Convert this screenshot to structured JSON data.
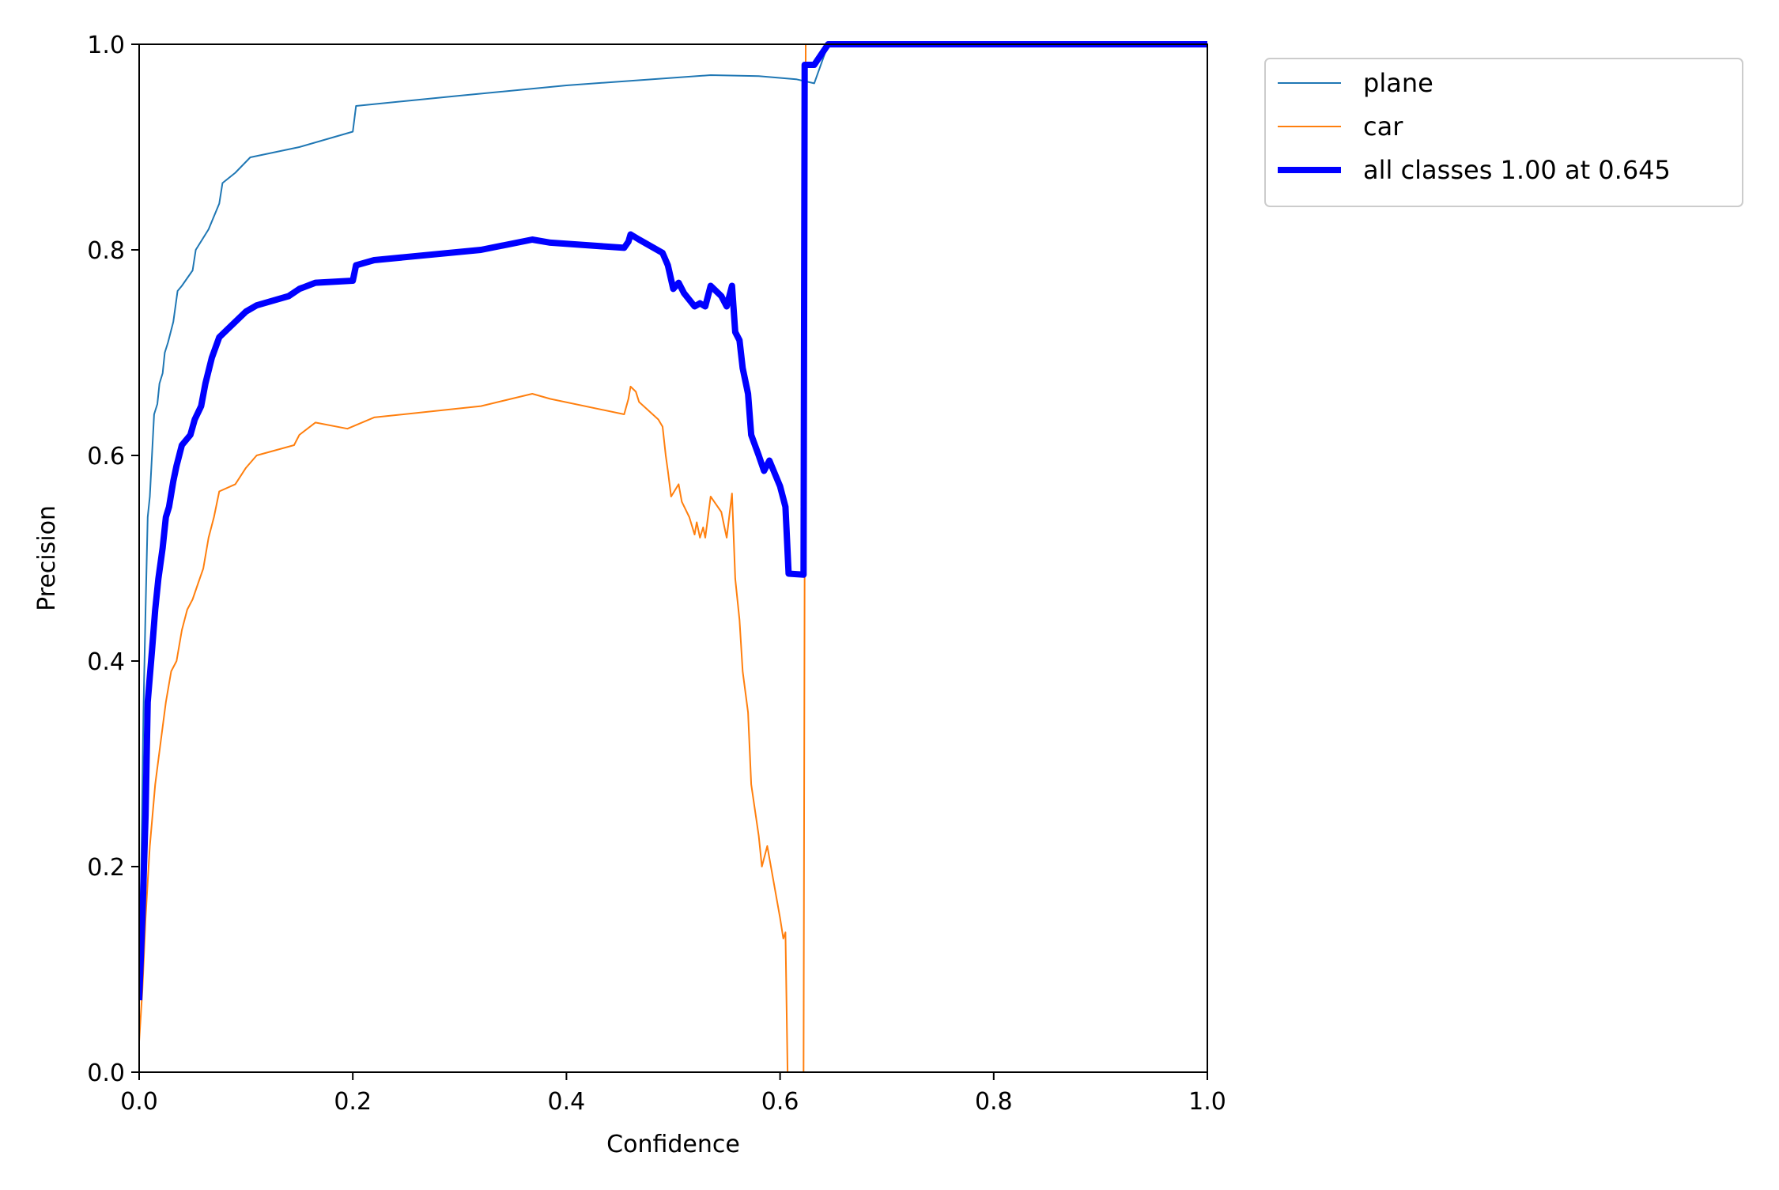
{
  "chart_data": {
    "type": "line",
    "title": "",
    "xlabel": "Confidence",
    "ylabel": "Precision",
    "xlim": [
      0,
      1
    ],
    "ylim": [
      0,
      1
    ],
    "x_ticks": [
      "0.0",
      "0.2",
      "0.4",
      "0.6",
      "0.8",
      "1.0"
    ],
    "y_ticks": [
      "0.0",
      "0.2",
      "0.4",
      "0.6",
      "0.8",
      "1.0"
    ],
    "grid": false,
    "legend_position": "outside-top-right",
    "series": [
      {
        "name": "plane",
        "color": "#1f77b4",
        "linewidth": "thin",
        "points": [
          [
            0.0,
            0.08
          ],
          [
            0.002,
            0.2
          ],
          [
            0.004,
            0.35
          ],
          [
            0.006,
            0.45
          ],
          [
            0.008,
            0.54
          ],
          [
            0.01,
            0.56
          ],
          [
            0.012,
            0.6
          ],
          [
            0.014,
            0.64
          ],
          [
            0.017,
            0.65
          ],
          [
            0.019,
            0.67
          ],
          [
            0.022,
            0.68
          ],
          [
            0.024,
            0.7
          ],
          [
            0.027,
            0.71
          ],
          [
            0.032,
            0.73
          ],
          [
            0.036,
            0.76
          ],
          [
            0.04,
            0.765
          ],
          [
            0.05,
            0.78
          ],
          [
            0.053,
            0.8
          ],
          [
            0.065,
            0.82
          ],
          [
            0.075,
            0.845
          ],
          [
            0.078,
            0.865
          ],
          [
            0.09,
            0.875
          ],
          [
            0.104,
            0.89
          ],
          [
            0.15,
            0.9
          ],
          [
            0.2,
            0.915
          ],
          [
            0.203,
            0.94
          ],
          [
            0.3,
            0.95
          ],
          [
            0.4,
            0.96
          ],
          [
            0.535,
            0.97
          ],
          [
            0.58,
            0.969
          ],
          [
            0.615,
            0.966
          ],
          [
            0.632,
            0.962
          ],
          [
            0.645,
            1.0
          ],
          [
            1.0,
            1.0
          ]
        ]
      },
      {
        "name": "car",
        "color": "#ff7f0e",
        "linewidth": "thin",
        "points": [
          [
            0.0,
            0.03
          ],
          [
            0.003,
            0.08
          ],
          [
            0.006,
            0.15
          ],
          [
            0.01,
            0.22
          ],
          [
            0.015,
            0.28
          ],
          [
            0.02,
            0.32
          ],
          [
            0.025,
            0.36
          ],
          [
            0.03,
            0.39
          ],
          [
            0.035,
            0.4
          ],
          [
            0.04,
            0.43
          ],
          [
            0.045,
            0.45
          ],
          [
            0.05,
            0.46
          ],
          [
            0.055,
            0.475
          ],
          [
            0.06,
            0.49
          ],
          [
            0.065,
            0.52
          ],
          [
            0.07,
            0.54
          ],
          [
            0.075,
            0.565
          ],
          [
            0.09,
            0.572
          ],
          [
            0.1,
            0.588
          ],
          [
            0.11,
            0.6
          ],
          [
            0.145,
            0.61
          ],
          [
            0.15,
            0.62
          ],
          [
            0.165,
            0.632
          ],
          [
            0.195,
            0.626
          ],
          [
            0.22,
            0.637
          ],
          [
            0.32,
            0.648
          ],
          [
            0.368,
            0.66
          ],
          [
            0.385,
            0.655
          ],
          [
            0.454,
            0.64
          ],
          [
            0.458,
            0.655
          ],
          [
            0.46,
            0.667
          ],
          [
            0.465,
            0.662
          ],
          [
            0.468,
            0.652
          ],
          [
            0.486,
            0.635
          ],
          [
            0.49,
            0.628
          ],
          [
            0.493,
            0.6
          ],
          [
            0.495,
            0.585
          ],
          [
            0.498,
            0.56
          ],
          [
            0.505,
            0.572
          ],
          [
            0.508,
            0.555
          ],
          [
            0.515,
            0.54
          ],
          [
            0.52,
            0.523
          ],
          [
            0.522,
            0.535
          ],
          [
            0.525,
            0.52
          ],
          [
            0.528,
            0.53
          ],
          [
            0.53,
            0.52
          ],
          [
            0.535,
            0.56
          ],
          [
            0.545,
            0.545
          ],
          [
            0.548,
            0.53
          ],
          [
            0.55,
            0.52
          ],
          [
            0.555,
            0.563
          ],
          [
            0.558,
            0.48
          ],
          [
            0.562,
            0.44
          ],
          [
            0.565,
            0.39
          ],
          [
            0.57,
            0.35
          ],
          [
            0.573,
            0.28
          ],
          [
            0.58,
            0.23
          ],
          [
            0.583,
            0.2
          ],
          [
            0.588,
            0.22
          ],
          [
            0.6,
            0.15
          ],
          [
            0.603,
            0.13
          ],
          [
            0.605,
            0.136
          ],
          [
            0.607,
            0.0
          ],
          [
            0.622,
            0.0
          ],
          [
            0.623,
            0.5
          ],
          [
            0.624,
            1.0
          ],
          [
            1.0,
            1.0
          ]
        ]
      },
      {
        "name": "all classes 1.00 at 0.645",
        "color": "#0000ff",
        "linewidth": "thick",
        "points": [
          [
            0.0,
            0.07
          ],
          [
            0.003,
            0.15
          ],
          [
            0.006,
            0.25
          ],
          [
            0.008,
            0.36
          ],
          [
            0.012,
            0.41
          ],
          [
            0.015,
            0.45
          ],
          [
            0.018,
            0.48
          ],
          [
            0.022,
            0.51
          ],
          [
            0.025,
            0.54
          ],
          [
            0.028,
            0.55
          ],
          [
            0.032,
            0.575
          ],
          [
            0.035,
            0.59
          ],
          [
            0.04,
            0.61
          ],
          [
            0.048,
            0.62
          ],
          [
            0.052,
            0.635
          ],
          [
            0.058,
            0.648
          ],
          [
            0.062,
            0.67
          ],
          [
            0.068,
            0.695
          ],
          [
            0.075,
            0.715
          ],
          [
            0.085,
            0.725
          ],
          [
            0.1,
            0.74
          ],
          [
            0.11,
            0.746
          ],
          [
            0.14,
            0.755
          ],
          [
            0.15,
            0.762
          ],
          [
            0.165,
            0.768
          ],
          [
            0.2,
            0.77
          ],
          [
            0.203,
            0.785
          ],
          [
            0.22,
            0.79
          ],
          [
            0.32,
            0.8
          ],
          [
            0.368,
            0.81
          ],
          [
            0.385,
            0.807
          ],
          [
            0.454,
            0.802
          ],
          [
            0.458,
            0.808
          ],
          [
            0.46,
            0.815
          ],
          [
            0.468,
            0.81
          ],
          [
            0.49,
            0.797
          ],
          [
            0.495,
            0.785
          ],
          [
            0.5,
            0.762
          ],
          [
            0.505,
            0.768
          ],
          [
            0.51,
            0.758
          ],
          [
            0.52,
            0.745
          ],
          [
            0.525,
            0.748
          ],
          [
            0.53,
            0.745
          ],
          [
            0.535,
            0.765
          ],
          [
            0.545,
            0.755
          ],
          [
            0.55,
            0.745
          ],
          [
            0.555,
            0.765
          ],
          [
            0.558,
            0.72
          ],
          [
            0.562,
            0.712
          ],
          [
            0.565,
            0.685
          ],
          [
            0.57,
            0.66
          ],
          [
            0.573,
            0.62
          ],
          [
            0.58,
            0.6
          ],
          [
            0.585,
            0.585
          ],
          [
            0.59,
            0.595
          ],
          [
            0.6,
            0.57
          ],
          [
            0.605,
            0.55
          ],
          [
            0.608,
            0.485
          ],
          [
            0.622,
            0.484
          ],
          [
            0.623,
            0.98
          ],
          [
            0.632,
            0.98
          ],
          [
            0.645,
            1.0
          ],
          [
            1.0,
            1.0
          ]
        ]
      }
    ]
  }
}
